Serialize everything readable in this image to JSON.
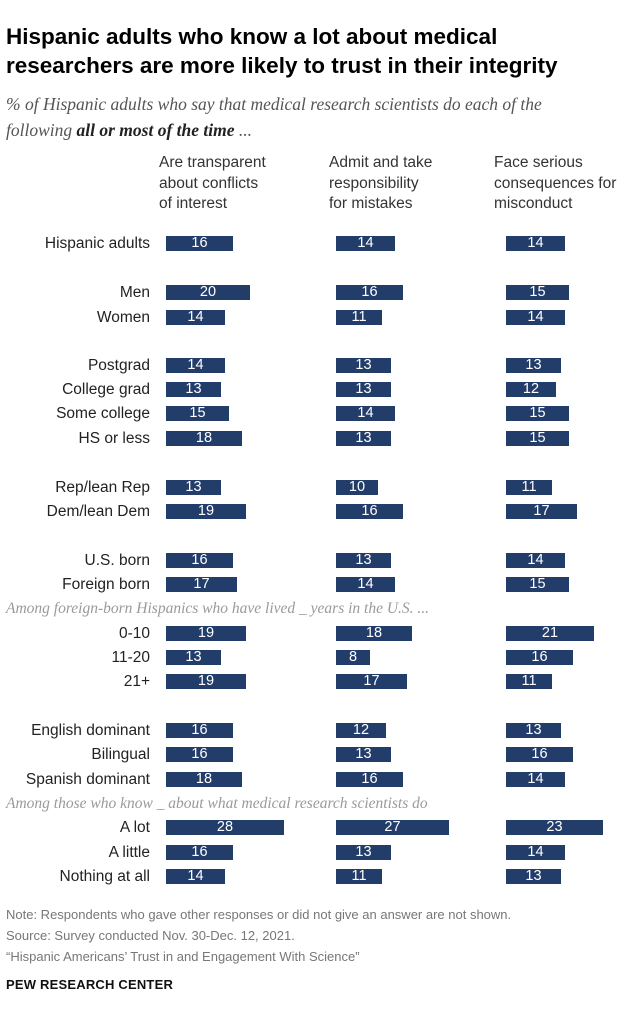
{
  "title_line1": "Hispanic adults who know a lot about medical",
  "title_line2": "researchers are more likely to trust in their integrity",
  "subtitle_line1": "% of Hispanic adults who say that medical research scientists do each of the",
  "subtitle_line2_prefix": "following ",
  "subtitle_line2_bold": "all or most of the time",
  "subtitle_line2_suffix": " ...",
  "notes": {
    "note": "Note: Respondents who gave other responses or did not give an answer are not shown.",
    "source": "Source: Survey conducted Nov. 30-Dec. 12, 2021.",
    "report": "“Hispanic Americans’ Trust in and Engagement With Science”",
    "brand": "PEW RESEARCH CENTER"
  },
  "chart_data": {
    "type": "bar",
    "orientation": "horizontal",
    "series": [
      {
        "name": "Are transparent\nabout conflicts\nof interest"
      },
      {
        "name": "Admit and take\nresponsibility\nfor mistakes"
      },
      {
        "name": "Face serious\nconsequences for\nmisconduct"
      }
    ],
    "sections": [
      "Among foreign-born Hispanics who have lived _ years in the U.S. ...",
      "Among those who know _ about what medical research scientists do"
    ],
    "rows": [
      {
        "label": "Hispanic adults",
        "values": [
          16,
          14,
          14
        ]
      },
      {
        "label": "Men",
        "values": [
          20,
          16,
          15
        ]
      },
      {
        "label": "Women",
        "values": [
          14,
          11,
          14
        ]
      },
      {
        "label": "Postgrad",
        "values": [
          14,
          13,
          13
        ]
      },
      {
        "label": "College grad",
        "values": [
          13,
          13,
          12
        ]
      },
      {
        "label": "Some college",
        "values": [
          15,
          14,
          15
        ]
      },
      {
        "label": "HS or less",
        "values": [
          18,
          13,
          15
        ]
      },
      {
        "label": "Rep/lean Rep",
        "values": [
          13,
          10,
          11
        ]
      },
      {
        "label": "Dem/lean Dem",
        "values": [
          19,
          16,
          17
        ]
      },
      {
        "label": "U.S. born",
        "values": [
          16,
          13,
          14
        ]
      },
      {
        "label": "Foreign born",
        "values": [
          17,
          14,
          15
        ]
      },
      {
        "label": "0-10",
        "values": [
          19,
          18,
          21
        ]
      },
      {
        "label": "11-20",
        "values": [
          13,
          8,
          16
        ]
      },
      {
        "label": "21+",
        "values": [
          19,
          17,
          11
        ]
      },
      {
        "label": "English dominant",
        "values": [
          16,
          12,
          13
        ]
      },
      {
        "label": "Bilingual",
        "values": [
          16,
          13,
          16
        ]
      },
      {
        "label": "Spanish dominant",
        "values": [
          18,
          16,
          14
        ]
      },
      {
        "label": "A lot",
        "values": [
          28,
          27,
          23
        ]
      },
      {
        "label": "A little",
        "values": [
          16,
          13,
          14
        ]
      },
      {
        "label": "Nothing at all",
        "values": [
          14,
          11,
          13
        ]
      }
    ],
    "bar_color": "#233d6b",
    "value_label_color": "#ffffff"
  }
}
